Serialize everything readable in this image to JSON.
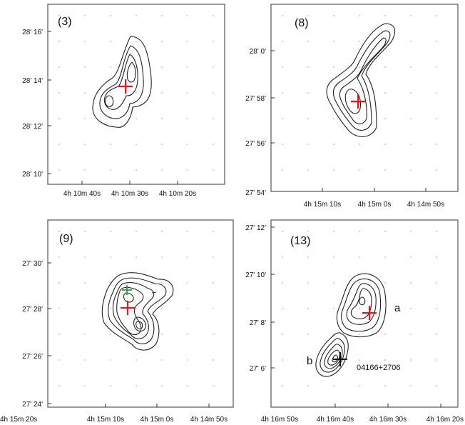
{
  "colors": {
    "red_marker": "#e8141e",
    "green_marker": "#2ea043",
    "black_marker": "#111111",
    "contour": "#222222",
    "grid_dots": "#b5b5b5"
  },
  "panels": [
    {
      "label": "(3)",
      "y_ticks": [
        "28' 16'",
        "28' 14'",
        "28' 12'",
        "28' 10'"
      ],
      "x_ticks": [
        "4h 10m 40s",
        "4h 10m 30s",
        "4h 10m 20s"
      ],
      "markers": [
        {
          "color": "red",
          "symbol": "plus"
        }
      ]
    },
    {
      "label": "(8)",
      "y_ticks": [
        "28' 0'",
        "27' 58'",
        "27' 56'",
        "27' 54'"
      ],
      "x_ticks": [
        "4h 15m 10s",
        "4h 15m 0s",
        "4h 14m 50s"
      ],
      "markers": [
        {
          "color": "red",
          "symbol": "plus"
        }
      ]
    },
    {
      "label": "(9)",
      "y_ticks": [
        "27' 30'",
        "27' 28'",
        "27' 26'",
        "27' 24'"
      ],
      "x_ticks": [
        "4h 15m 20s",
        "4h 15m 10s",
        "4h 15m 0s",
        "4h 14m 50s"
      ],
      "markers": [
        {
          "color": "green",
          "symbol": "plus"
        },
        {
          "color": "red",
          "symbol": "plus"
        }
      ]
    },
    {
      "label": "(13)",
      "y_ticks": [
        "27' 12'",
        "27' 10'",
        "27' 8'",
        "27' 6'"
      ],
      "x_ticks": [
        "4h 16m 50s",
        "4h 16m 40s",
        "4h 16m 30s",
        "4h 16m 20s"
      ],
      "markers": [
        {
          "color": "red",
          "symbol": "plus"
        },
        {
          "color": "black",
          "symbol": "plus"
        }
      ],
      "annotations": {
        "a": "a",
        "b": "b",
        "source": "04166+2706"
      }
    }
  ]
}
